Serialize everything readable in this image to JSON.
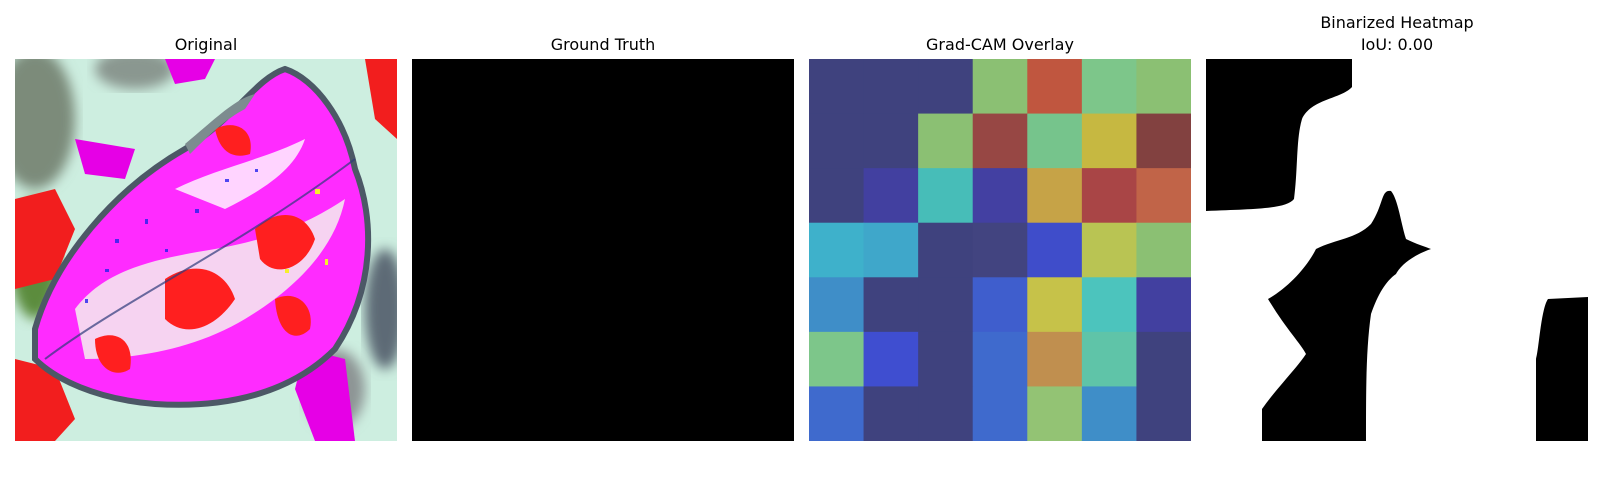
{
  "panels": {
    "original": {
      "title": "Original"
    },
    "ground_truth": {
      "title": "Ground Truth"
    },
    "gradcam": {
      "title": "Grad-CAM Overlay"
    },
    "binarized": {
      "title": "Binarized Heatmap",
      "subtitle": "IoU: 0.00"
    }
  },
  "chart_data": [
    {
      "type": "heatmap",
      "title": "Original",
      "content": "leaf image with false-color rendering"
    },
    {
      "type": "heatmap",
      "title": "Ground Truth",
      "mask": "all zero (black)"
    },
    {
      "type": "heatmap",
      "title": "Grad-CAM Overlay",
      "colormap": "jet",
      "grid_size": [
        7,
        7
      ],
      "colors": [
        [
          "#3f427e",
          "#3f427e",
          "#3f427e",
          "#8bc073",
          "#c0563f",
          "#7dc68a",
          "#8bc073"
        ],
        [
          "#3f427e",
          "#3f427e",
          "#8bc073",
          "#974744",
          "#76c48c",
          "#c6b841",
          "#824140"
        ],
        [
          "#3f427e",
          "#4240a0",
          "#47bdb8",
          "#4340a2",
          "#c6a347",
          "#a94546",
          "#c16448"
        ],
        [
          "#3eb1cb",
          "#3fa7ca",
          "#3f427e",
          "#424480",
          "#3f4dca",
          "#b9c453",
          "#8bc073"
        ],
        [
          "#3f8ec8",
          "#3f427e",
          "#3f427e",
          "#3f5ecd",
          "#c6c249",
          "#4cc4bd",
          "#4240a0"
        ],
        [
          "#7dc68a",
          "#3f4ed0",
          "#3f427e",
          "#3f6acd",
          "#c08f4f",
          "#5fc4a8",
          "#3f427e"
        ],
        [
          "#3f6acd",
          "#3f427e",
          "#3f427e",
          "#3f6acd",
          "#93c374",
          "#3f8ec8",
          "#3f427e"
        ]
      ]
    },
    {
      "type": "heatmap",
      "title": "Binarized Heatmap",
      "subtitle": "IoU: 0.00",
      "iou": 0.0,
      "values": "binary mask (white = active)"
    }
  ]
}
